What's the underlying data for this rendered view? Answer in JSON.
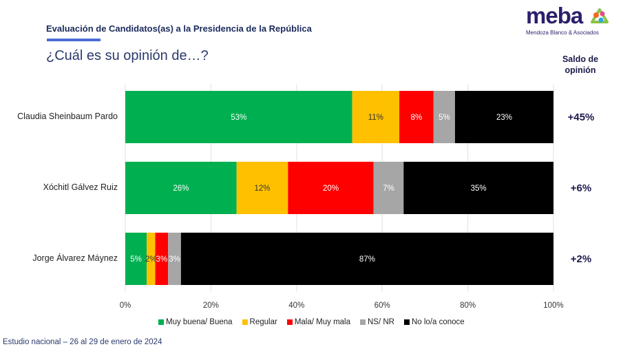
{
  "header": {
    "title": "Evaluación de Candidatos(as) a la Presidencia de la República",
    "question": "¿Cuál es su opinión de…?"
  },
  "logo": {
    "word": "meba",
    "subtitle": "Mendoza Blanco & Asociados"
  },
  "saldo_header": [
    "Saldo de",
    "opinión"
  ],
  "footer": "Estudio nacional – 26 al 29 de enero de 2024",
  "chart_data": {
    "type": "bar",
    "orientation": "horizontal",
    "stacked": true,
    "categories": [
      "Claudia Sheinbaum Pardo",
      "Xóchitl Gálvez Ruiz",
      "Jorge Álvarez Máynez"
    ],
    "series": [
      {
        "name": "Muy buena/ Buena",
        "color": "#00b050",
        "label_color": "#ffffff",
        "values": [
          53,
          26,
          5
        ],
        "labels": [
          "53%",
          "26%",
          "5%"
        ]
      },
      {
        "name": "Regular",
        "color": "#ffc000",
        "label_color": "#333333",
        "values": [
          11,
          12,
          2
        ],
        "labels": [
          "11%",
          "12%",
          "2%"
        ]
      },
      {
        "name": "Mala/ Muy mala",
        "color": "#ff0000",
        "label_color": "#ffffff",
        "values": [
          8,
          20,
          3
        ],
        "labels": [
          "8%",
          "20%",
          "3%"
        ]
      },
      {
        "name": "NS/ NR",
        "color": "#a6a6a6",
        "label_color": "#ffffff",
        "values": [
          5,
          7,
          3
        ],
        "labels": [
          "5%",
          "7%",
          "3%"
        ]
      },
      {
        "name": "No lo/a conoce",
        "color": "#000000",
        "label_color": "#ffffff",
        "values": [
          23,
          35,
          87
        ],
        "labels": [
          "23%",
          "35%",
          "87%"
        ]
      }
    ],
    "saldo": [
      "+45%",
      "+6%",
      "+2%"
    ],
    "xlim": [
      0,
      100
    ],
    "xticks": [
      "0%",
      "20%",
      "40%",
      "60%",
      "80%",
      "100%"
    ],
    "grid": true,
    "legend": "bottom"
  }
}
